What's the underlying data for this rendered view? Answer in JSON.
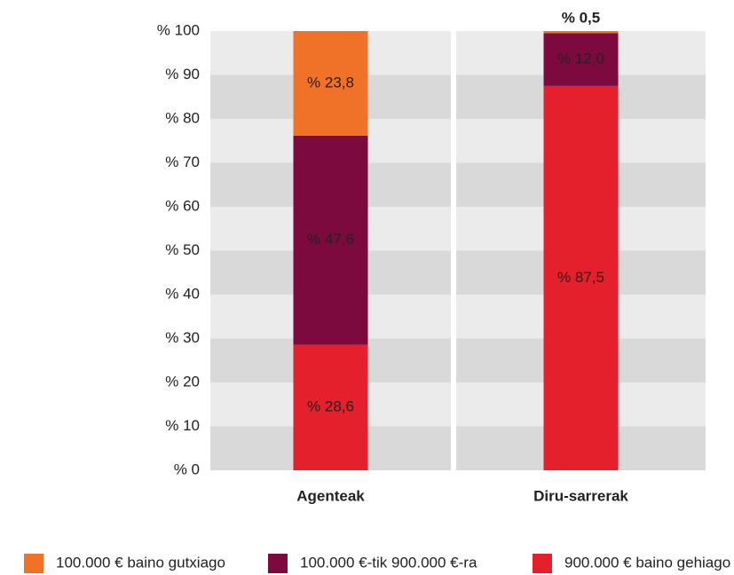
{
  "chart_data": {
    "type": "stacked_bar",
    "categories": [
      "Agenteak",
      "Diru-sarrerak"
    ],
    "series": [
      {
        "name": "900.000 € baino gehiago",
        "color": "#e3202c",
        "values": [
          28.6,
          87.5
        ],
        "value_labels": [
          "% 28,6",
          "% 87,5"
        ]
      },
      {
        "name": "100.000 €-tik 900.000 €-ra",
        "color": "#7c0a3e",
        "values": [
          47.6,
          12.0
        ],
        "value_labels": [
          "% 47,6",
          "% 12,0"
        ]
      },
      {
        "name": "100.000 € baino gutxiago",
        "color": "#f07228",
        "values": [
          23.8,
          0.5
        ],
        "value_labels": [
          "% 23,8",
          "% 0,5"
        ]
      }
    ],
    "ylim": [
      0,
      100
    ],
    "yticks": [
      {
        "value": 0,
        "label": "% 0"
      },
      {
        "value": 10,
        "label": "% 10"
      },
      {
        "value": 20,
        "label": "% 20"
      },
      {
        "value": 30,
        "label": "% 30"
      },
      {
        "value": 40,
        "label": "% 40"
      },
      {
        "value": 50,
        "label": "% 50"
      },
      {
        "value": 60,
        "label": "% 60"
      },
      {
        "value": 70,
        "label": "% 70"
      },
      {
        "value": 80,
        "label": "% 80"
      },
      {
        "value": 90,
        "label": "% 90"
      },
      {
        "value": 100,
        "label": "% 100"
      }
    ],
    "grid": true
  }
}
